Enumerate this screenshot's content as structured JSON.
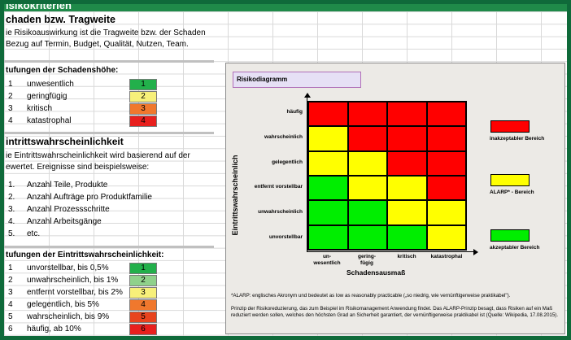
{
  "banner": {
    "title": "isikokriterien"
  },
  "section1": {
    "heading": "chaden bzw. Tragweite",
    "line1": "ie Risikoauswirkung ist die Tragweite bzw. der Schaden",
    "line2": "Bezug auf Termin, Budget, Qualität, Nutzen, Team."
  },
  "damage_levels": {
    "heading": "tufungen der Schadenshöhe:",
    "rows": [
      {
        "num": "1",
        "label": "unwesentlich",
        "score": "1",
        "color": "#22b04b"
      },
      {
        "num": "2",
        "label": "geringfügig",
        "score": "2",
        "color": "#f7f07a"
      },
      {
        "num": "3",
        "label": "kritisch",
        "score": "3",
        "color": "#f0782d"
      },
      {
        "num": "4",
        "label": "katastrophal",
        "score": "4",
        "color": "#e8201e"
      }
    ]
  },
  "section2": {
    "heading": "intrittswahrscheinlichkeit",
    "line1": "ie Eintrittswahrscheinlichkeit  wird basierend auf der",
    "line2": "ewertet. Ereignisse sind beispielsweise:"
  },
  "examples": [
    {
      "num": "1.",
      "label": "Anzahl Teile, Produkte"
    },
    {
      "num": "2.",
      "label": "Anzahl Aufträge pro Produktfamilie"
    },
    {
      "num": "3.",
      "label": "Anzahl Prozessschritte"
    },
    {
      "num": "4.",
      "label": "Anzahl Arbeitsgänge"
    },
    {
      "num": "5.",
      "label": "etc."
    }
  ],
  "probability_levels": {
    "heading": "tufungen der Eintrittswahrscheinlichkeit:",
    "rows": [
      {
        "num": "1",
        "label": "unvorstellbar, bis 0,5%",
        "score": "1",
        "color": "#22b04b"
      },
      {
        "num": "2",
        "label": "unwahrscheinlich, bis 1%",
        "score": "2",
        "color": "#8fd18b"
      },
      {
        "num": "3",
        "label": "entfernt vorstellbar, bis 2%",
        "score": "3",
        "color": "#f7f07a"
      },
      {
        "num": "4",
        "label": "gelegentlich, bis 5%",
        "score": "4",
        "color": "#f0782d"
      },
      {
        "num": "5",
        "label": "wahrscheinlich, bis 9%",
        "score": "5",
        "color": "#e8441e"
      },
      {
        "num": "6",
        "label": "häufig, ab 10%",
        "score": "6",
        "color": "#e8201e"
      }
    ]
  },
  "diagram": {
    "title": "Risikodiagramm",
    "ylabel": "Eintrittswahrscheinlich",
    "xlabel": "Schadensausmaß",
    "row_labels": [
      "häufig",
      "wahrscheinlich",
      "gelegentlich",
      "entfernt vorstellbar",
      "unwahrscheinlich",
      "unvorstellbar"
    ],
    "col_labels": [
      "un-\nwesentlich",
      "gering-\nfügig",
      "kritisch",
      "katastrophal"
    ],
    "colors": {
      "red": "#ff0000",
      "yellow": "#ffff00",
      "green": "#00ee00"
    },
    "matrix": [
      [
        "red",
        "red",
        "red",
        "red"
      ],
      [
        "yellow",
        "red",
        "red",
        "red"
      ],
      [
        "yellow",
        "yellow",
        "red",
        "red"
      ],
      [
        "green",
        "yellow",
        "yellow",
        "red"
      ],
      [
        "green",
        "green",
        "yellow",
        "yellow"
      ],
      [
        "green",
        "green",
        "green",
        "yellow"
      ]
    ],
    "legend": [
      {
        "label": "inakzeptabler Bereich",
        "color": "#ff0000"
      },
      {
        "label": "ALARP* - Bereich",
        "color": "#ffff00"
      },
      {
        "label": "akzeptabler Bereich",
        "color": "#00ee00"
      }
    ],
    "note1": "*ALARP: englisches Akronym und bedeutet as low as reasonably practicable („so niedrig, wie vernünftigerweise praktikabel\").",
    "note2": "Prinzip der Risikoreduzierung, das zum Beispiel im Risikomanagement Anwendung findet. Das ALARP-Prinzip besagt, dass Risiken auf ein Maß reduziert werden sollen, welches den höchsten Grad an Sicherheit garantiert, der vernünftigerweise praktikabel ist (Quelle: Wikipedia, 17.08.2015)."
  }
}
